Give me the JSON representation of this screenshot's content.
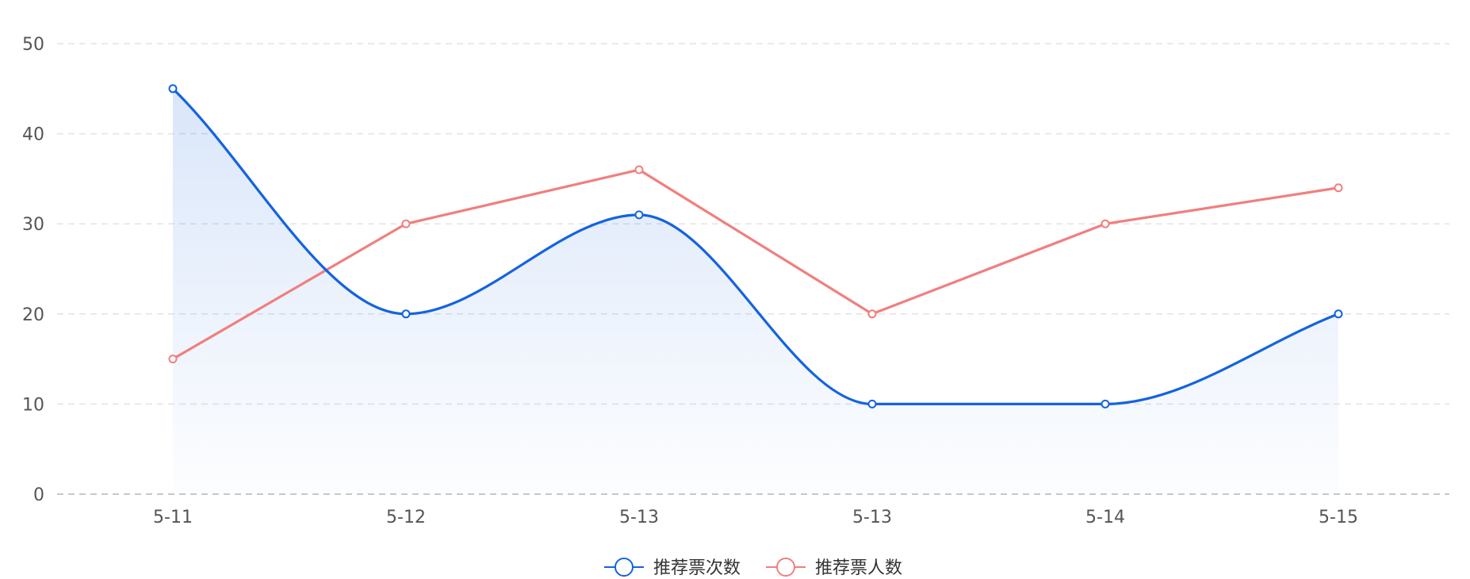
{
  "chart_data": {
    "type": "line",
    "categories": [
      "5-11",
      "5-12",
      "5-13",
      "5-13",
      "5-14",
      "5-15"
    ],
    "series": [
      {
        "name": "推荐票次数",
        "values": [
          45,
          20,
          31,
          10,
          10,
          20
        ],
        "color": "#1463e0",
        "smooth": true,
        "area": true
      },
      {
        "name": "推荐票人数",
        "values": [
          15,
          30,
          36,
          20,
          30,
          34
        ],
        "color": "#f07f7f",
        "smooth": false,
        "area": false
      }
    ],
    "ylim": [
      0,
      50
    ],
    "yticks": [
      0,
      10,
      20,
      30,
      40,
      50
    ],
    "grid": true,
    "legend_position": "bottom-center"
  }
}
